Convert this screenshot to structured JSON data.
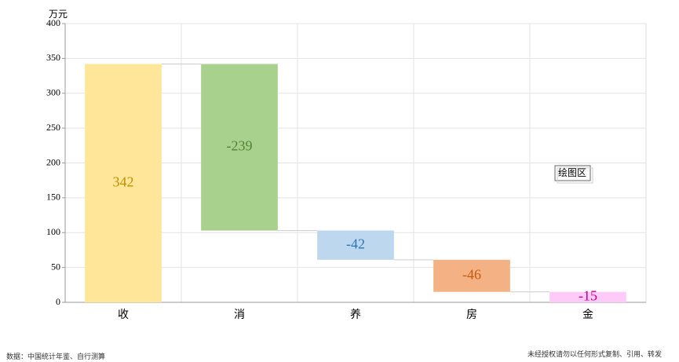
{
  "chart_data": {
    "type": "waterfall",
    "y_unit": "万元",
    "categories": [
      "收",
      "消",
      "养",
      "房",
      "金"
    ],
    "values": [
      342,
      -239,
      -42,
      -46,
      -15
    ],
    "colors": [
      "#ffe699",
      "#a9d18e",
      "#bdd7ee",
      "#f4b183",
      "#ffc9f8"
    ],
    "label_colors": [
      "#bf9000",
      "#548235",
      "#2e75b6",
      "#c55a11",
      "#c0008c"
    ],
    "ylim": [
      0,
      400
    ],
    "yticks": [
      0,
      50,
      100,
      150,
      200,
      250,
      300,
      350,
      400
    ],
    "grid": true,
    "annotation": "绘图区",
    "source": "数据：中国统计年鉴、自行测算",
    "note": "未经授权请勿以任何形式复制、引用、转发"
  }
}
